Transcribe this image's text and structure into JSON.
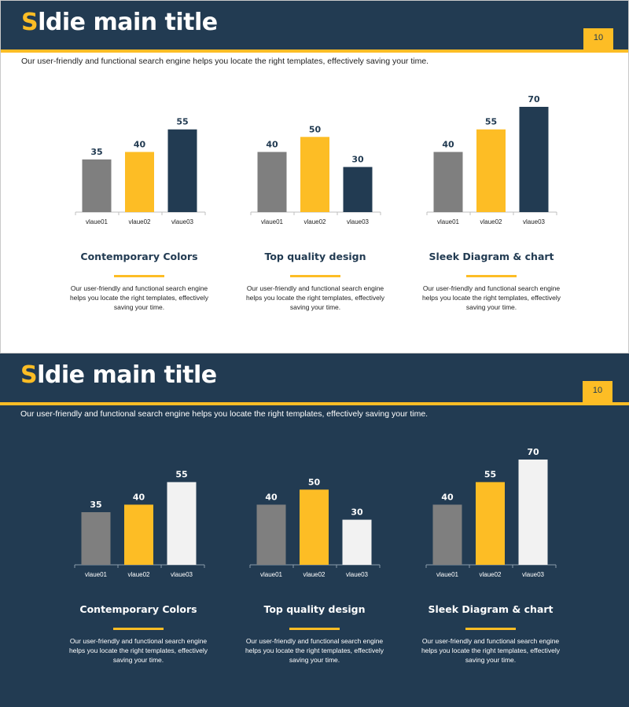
{
  "slides": [
    {
      "theme": "light",
      "title_first": "S",
      "title_rest": "ldie main title",
      "page_number": "10",
      "subtitle": "Our user-friendly and functional search engine helps you locate the right templates, effectively saving your time.",
      "columns": [
        {
          "heading": "Contemporary Colors",
          "description": "Our user-friendly and functional search engine helps you locate the right templates, effectively saving your time."
        },
        {
          "heading": "Top quality design",
          "description": "Our user-friendly and functional search engine helps you locate the right templates, effectively saving your time."
        },
        {
          "heading": "Sleek Diagram & chart",
          "description": "Our user-friendly and functional search engine helps you locate the right templates, effectively saving your time."
        }
      ]
    },
    {
      "theme": "dark",
      "title_first": "S",
      "title_rest": "ldie main title",
      "page_number": "10",
      "subtitle": "Our user-friendly and functional search engine helps you locate the right templates, effectively saving your time.",
      "columns": [
        {
          "heading": "Contemporary Colors",
          "description": "Our user-friendly and functional search engine helps you locate the right templates, effectively saving your time."
        },
        {
          "heading": "Top quality design",
          "description": "Our user-friendly and functional search engine helps you locate the right templates, effectively saving your time."
        },
        {
          "heading": "Sleek Diagram & chart",
          "description": "Our user-friendly and functional search engine helps you locate the right templates, effectively saving your time."
        }
      ]
    }
  ],
  "colors": {
    "navy": "#223B52",
    "accent": "#FDBD25",
    "gray": "#7F7F7F",
    "light": "#F2F2F2"
  },
  "chart_data": [
    {
      "type": "bar",
      "slide": 1,
      "categories": [
        "vlaue01",
        "vlaue02",
        "vlaue03"
      ],
      "values": [
        35,
        40,
        55
      ],
      "bar_colors": [
        "#7F7F7F",
        "#FDBD25",
        "#223B52"
      ],
      "ylim": [
        0,
        70
      ]
    },
    {
      "type": "bar",
      "slide": 1,
      "categories": [
        "vlaue01",
        "vlaue02",
        "vlaue03"
      ],
      "values": [
        40,
        50,
        30
      ],
      "bar_colors": [
        "#7F7F7F",
        "#FDBD25",
        "#223B52"
      ],
      "ylim": [
        0,
        70
      ]
    },
    {
      "type": "bar",
      "slide": 1,
      "categories": [
        "vlaue01",
        "vlaue02",
        "vlaue03"
      ],
      "values": [
        40,
        55,
        70
      ],
      "bar_colors": [
        "#7F7F7F",
        "#FDBD25",
        "#223B52"
      ],
      "ylim": [
        0,
        70
      ]
    },
    {
      "type": "bar",
      "slide": 2,
      "categories": [
        "vlaue01",
        "vlaue02",
        "vlaue03"
      ],
      "values": [
        35,
        40,
        55
      ],
      "bar_colors": [
        "#7F7F7F",
        "#FDBD25",
        "#F2F2F2"
      ],
      "ylim": [
        0,
        70
      ]
    },
    {
      "type": "bar",
      "slide": 2,
      "categories": [
        "vlaue01",
        "vlaue02",
        "vlaue03"
      ],
      "values": [
        40,
        50,
        30
      ],
      "bar_colors": [
        "#7F7F7F",
        "#FDBD25",
        "#F2F2F2"
      ],
      "ylim": [
        0,
        70
      ]
    },
    {
      "type": "bar",
      "slide": 2,
      "categories": [
        "vlaue01",
        "vlaue02",
        "vlaue03"
      ],
      "values": [
        40,
        55,
        70
      ],
      "bar_colors": [
        "#7F7F7F",
        "#FDBD25",
        "#F2F2F2"
      ],
      "ylim": [
        0,
        70
      ]
    }
  ]
}
